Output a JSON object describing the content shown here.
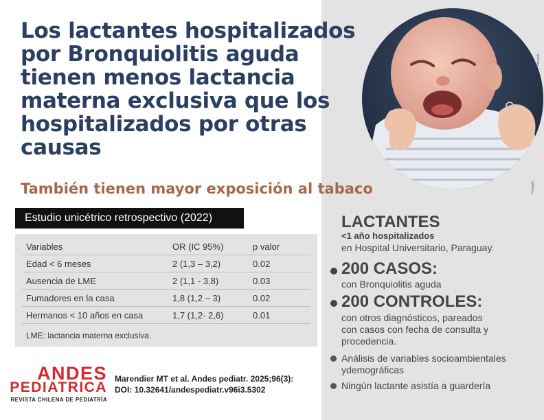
{
  "headline": "Los lactantes hospitalizados por Bronquiolitis aguda tienen menos lactancia materna exclusiva que los hospitalizados por otras causas",
  "subheadline": "También tienen mayor exposición al tabaco",
  "study_label": "Estudio unicétrico retrospectivo (2022)",
  "photo": {
    "credit": "Freepik",
    "alt": "bebé llorando"
  },
  "table": {
    "headers": [
      "Variables",
      "OR  (IC 95%)",
      "p valor"
    ],
    "rows": [
      [
        "Edad < 6 meses",
        "2  (1,3 – 3,2)",
        "0.02"
      ],
      [
        "Ausencia de LME",
        "2 (1,1 - 3,8)",
        "0.03"
      ],
      [
        "Fumadores en la casa",
        "1,8 (1,2 – 3)",
        "0.02"
      ],
      [
        "Hermanos < 10 años en casa",
        "1,7 (1,2- 2,6)",
        "0.01"
      ]
    ],
    "note": "LME: lactancia materna exclusiva."
  },
  "facts": {
    "lactantes_title": "LACTANTES",
    "lactantes_line1": "<1 año hospitalizados",
    "lactantes_line2": "en Hospital Universitario, Paraguay.",
    "casos_title": "200 CASOS:",
    "casos_text": "con Bronquiolitis aguda",
    "controles_title": "200 CONTROLES:",
    "controles_text": [
      "con otros diagnósticos, pareados",
      "con casos con fecha de consulta y",
      "procedencia."
    ],
    "bullet1": [
      "Análisis de variables socioambientales",
      "ydemográficas"
    ],
    "bullet2": "Ningún lactante asistía a guardería"
  },
  "logo": {
    "line1": "ANDES",
    "line2": "PEDIATRICA",
    "line3": "REVISTA CHILENA DE PEDIATRÍA"
  },
  "citation": {
    "line1": "Marendier MT et al. Andes pediatr. 2025;96(3):",
    "line2": "DOI: 10.32641/andespediatr.v96i3.5302"
  },
  "colors": {
    "title": "#2a3f61",
    "subtitle": "#a6674a",
    "panel": "#e3e3e3",
    "brand_red": "#d42a2a"
  }
}
